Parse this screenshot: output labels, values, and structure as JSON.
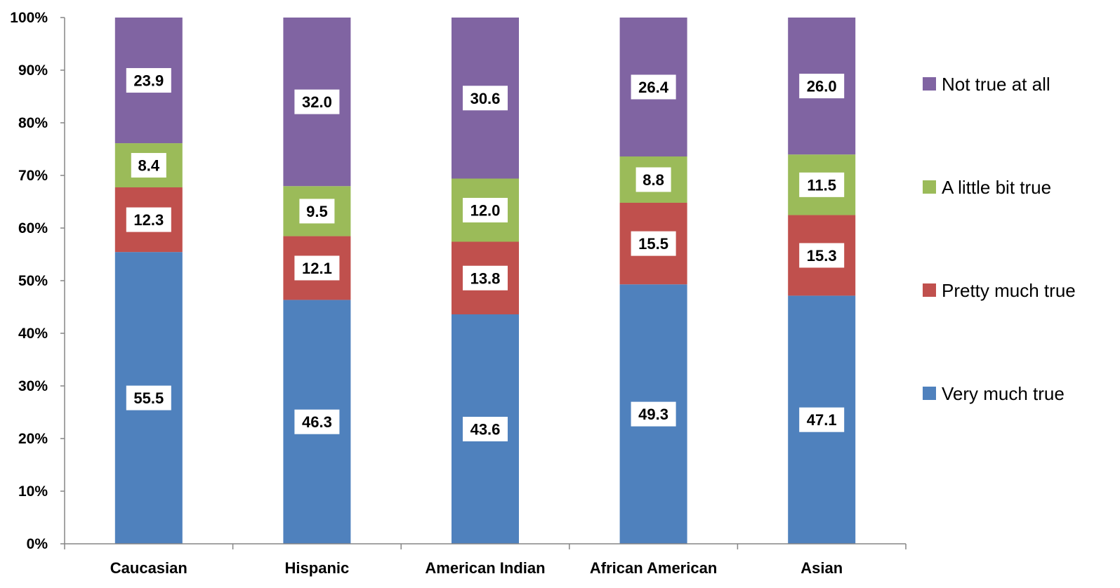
{
  "chart_data": {
    "type": "bar",
    "stacked": true,
    "percent_axis": true,
    "categories": [
      "Caucasian",
      "Hispanic",
      "American Indian",
      "African American",
      "Asian"
    ],
    "series": [
      {
        "name": "Very much true",
        "color": "#4F81BD",
        "values": [
          55.5,
          46.3,
          43.6,
          49.3,
          47.1
        ]
      },
      {
        "name": "Pretty much true",
        "color": "#C0504D",
        "values": [
          12.3,
          12.1,
          13.8,
          15.5,
          15.3
        ]
      },
      {
        "name": "A little bit true",
        "color": "#9BBB59",
        "values": [
          8.4,
          9.5,
          12.0,
          8.8,
          11.5
        ]
      },
      {
        "name": "Not true at all",
        "color": "#8064A2",
        "values": [
          23.9,
          32.0,
          30.6,
          26.4,
          26.0
        ]
      }
    ],
    "data_labels": [
      [
        "55.5",
        "46.3",
        "43.6",
        "49.3",
        "47.1"
      ],
      [
        "12.3",
        "12.1",
        "13.8",
        "15.5",
        "15.3"
      ],
      [
        "8.4",
        "9.5",
        "12.0",
        "8.8",
        "11.5"
      ],
      [
        "23.9",
        "32.0",
        "30.6",
        "26.4",
        "26.0"
      ]
    ],
    "y_ticks": [
      {
        "value": 0,
        "label": "0%"
      },
      {
        "value": 10,
        "label": "10%"
      },
      {
        "value": 20,
        "label": "20%"
      },
      {
        "value": 30,
        "label": "30%"
      },
      {
        "value": 40,
        "label": "40%"
      },
      {
        "value": 50,
        "label": "50%"
      },
      {
        "value": 60,
        "label": "60%"
      },
      {
        "value": 70,
        "label": "70%"
      },
      {
        "value": 80,
        "label": "80%"
      },
      {
        "value": 90,
        "label": "90%"
      },
      {
        "value": 100,
        "label": "100%"
      }
    ],
    "ylim": [
      0,
      100
    ],
    "title": "",
    "xlabel": "",
    "ylabel": "",
    "grid": false,
    "legend_position": "right",
    "legend_order": [
      "Not true at all",
      "A little bit true",
      "Pretty much true",
      "Very much true"
    ],
    "axis_color": "#868686"
  }
}
